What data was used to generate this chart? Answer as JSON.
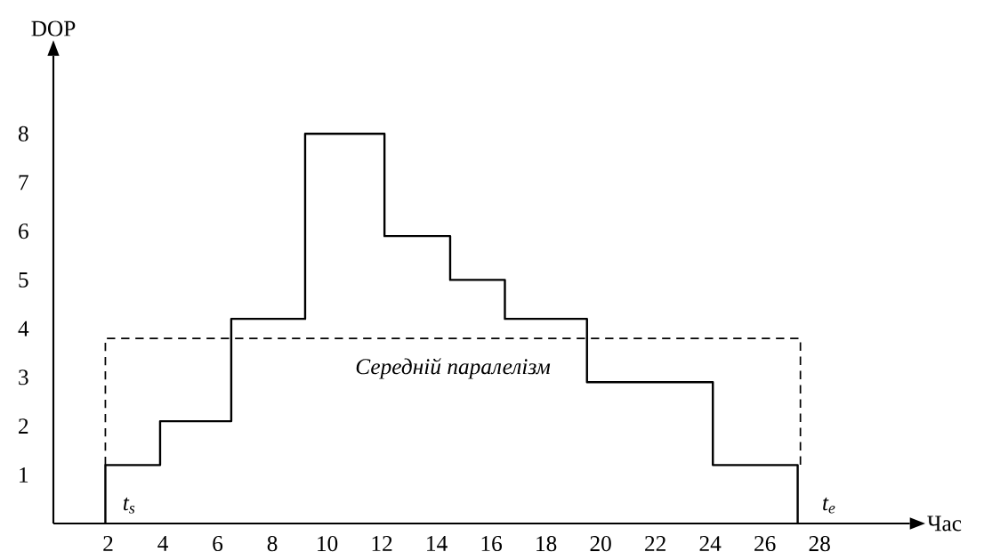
{
  "chart_data": {
    "type": "step",
    "xlabel": "Час",
    "ylabel": "DOP",
    "xlim": [
      0,
      31.3
    ],
    "ylim": [
      0,
      9.6
    ],
    "xticks": [
      2,
      4,
      6,
      8,
      10,
      12,
      14,
      16,
      18,
      20,
      22,
      24,
      26,
      28
    ],
    "yticks": [
      1,
      2,
      3,
      4,
      5,
      6,
      7,
      8
    ],
    "series": [
      {
        "color": "#000000",
        "x": [
          1.9,
          1.9,
          3.9,
          6.5,
          9.2,
          12.1,
          14.5,
          16.5,
          19.5,
          24.1,
          27.2
        ],
        "values": [
          0,
          1.2,
          2.1,
          4.2,
          8,
          5.9,
          5,
          4.2,
          2.9,
          1.2,
          0
        ]
      },
      {
        "type": "line",
        "line_style": "dashed",
        "color": "#000000",
        "x": [
          1.9,
          1.9,
          27.3,
          27.3
        ],
        "values": [
          1.2,
          3.8,
          3.8,
          1.2
        ]
      }
    ],
    "annotations": [
      "Середній паралелізм",
      "t$_{s}$",
      "t$_{e}$"
    ]
  }
}
